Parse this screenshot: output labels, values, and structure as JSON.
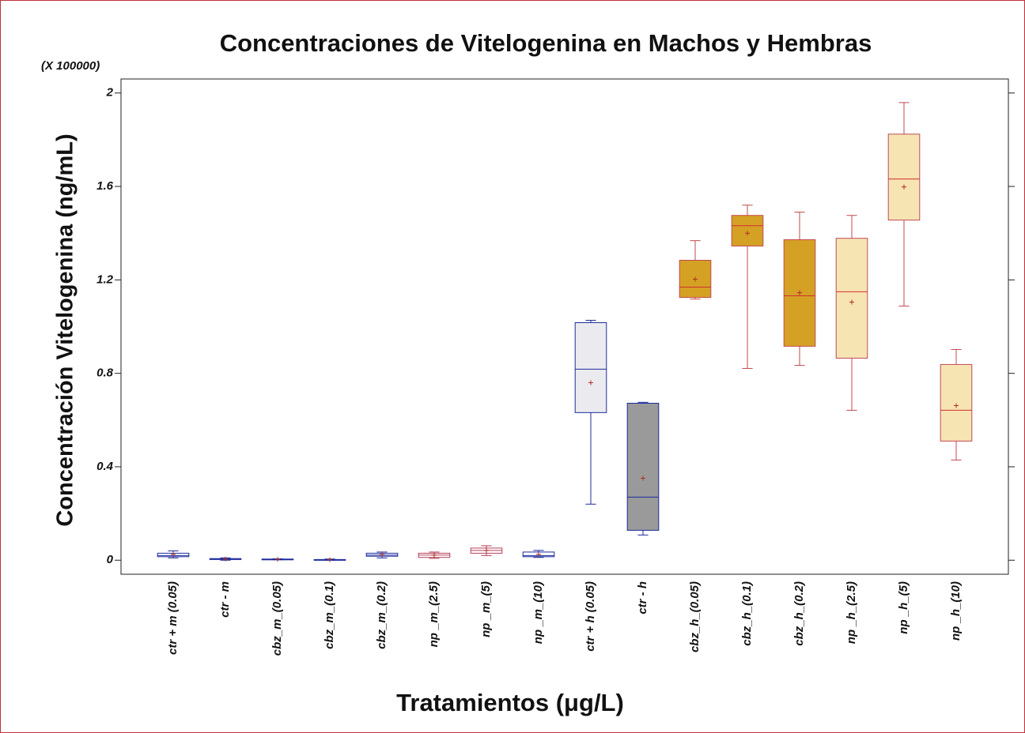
{
  "chart_data": {
    "type": "box",
    "title": "Concentraciones de Vitelogenina en Machos y Hembras",
    "y_multiplier": "(X 100000)",
    "ylabel": "Concentración Vitelogenina (ng/mL)",
    "xlabel": "Tratamientos (μg/L)",
    "categories": [
      "ctr + m (0.05)",
      "ctr - m",
      "cbz_m_(0.05)",
      "cbz_m_(0.1)",
      "cbz_m_(0.2)",
      "np _m_(2.5)",
      "np _m_(5)",
      "np _m_(10)",
      "ctr + h (0.05)",
      "ctr - h",
      "cbz_h_(0.05)",
      "cbz_h_(0.1)",
      "cbz_h_(0.2)",
      "np _h_(2.5)",
      "np _h_(5)",
      "np _h_(10)"
    ],
    "min": [
      0.01,
      0.0,
      0.002,
      0.0,
      0.01,
      0.008,
      0.02,
      0.012,
      0.24,
      0.108,
      1.118,
      0.821,
      0.834,
      0.642,
      1.088,
      0.429
    ],
    "q1": [
      0.015,
      0.003,
      0.003,
      0.001,
      0.017,
      0.012,
      0.03,
      0.015,
      0.632,
      0.128,
      1.125,
      1.345,
      0.916,
      0.865,
      1.456,
      0.51
    ],
    "median": [
      0.02,
      0.005,
      0.004,
      0.002,
      0.022,
      0.022,
      0.042,
      0.02,
      0.818,
      0.27,
      1.169,
      1.432,
      1.132,
      1.149,
      1.632,
      0.642
    ],
    "q3": [
      0.03,
      0.007,
      0.005,
      0.003,
      0.03,
      0.03,
      0.052,
      0.035,
      1.017,
      0.672,
      1.284,
      1.476,
      1.372,
      1.378,
      1.824,
      0.838
    ],
    "max": [
      0.04,
      0.01,
      0.006,
      0.005,
      0.035,
      0.035,
      0.062,
      0.042,
      1.027,
      0.676,
      1.368,
      1.52,
      1.49,
      1.476,
      1.959,
      0.902
    ],
    "mean": [
      0.025,
      0.005,
      0.004,
      0.002,
      0.024,
      0.022,
      0.042,
      0.025,
      0.76,
      0.351,
      1.203,
      1.4,
      1.145,
      1.105,
      1.598,
      0.662
    ],
    "fills": [
      "#ffffff",
      "#ffffff",
      "#ffffff",
      "#ffffff",
      "#ffffff",
      "#ffffff",
      "#ffffff",
      "#ffffff",
      "#ebebef",
      "#9a9a9a",
      "#d5a125",
      "#d5a125",
      "#d5a125",
      "#f6e4b2",
      "#f6e4b2",
      "#f6e4b2"
    ],
    "strokes": [
      "#1c2b9c",
      "#1c2b9c",
      "#1c2b9c",
      "#1c2b9c",
      "#1c2b9c",
      "#b5405a",
      "#b5405a",
      "#1c2b9c",
      "#1c2b9c",
      "#1c2b9c",
      "#c04a4a",
      "#c04a4a",
      "#c04a4a",
      "#c04a5a",
      "#c04a5a",
      "#c04a5a"
    ],
    "median_colors": [
      "#1c2b9c",
      "#1c2b9c",
      "#1c2b9c",
      "#1c2b9c",
      "#1c2b9c",
      "#b5405a",
      "#b5405a",
      "#1c2b9c",
      "#1c2b9c",
      "#1c2b9c",
      "#d03030",
      "#d03030",
      "#d03030",
      "#d03030",
      "#d03030",
      "#d03030"
    ],
    "ylim": [
      -0.06,
      2.06
    ],
    "yticks": [
      0,
      0.4,
      0.8,
      1.2,
      1.6,
      2
    ]
  }
}
